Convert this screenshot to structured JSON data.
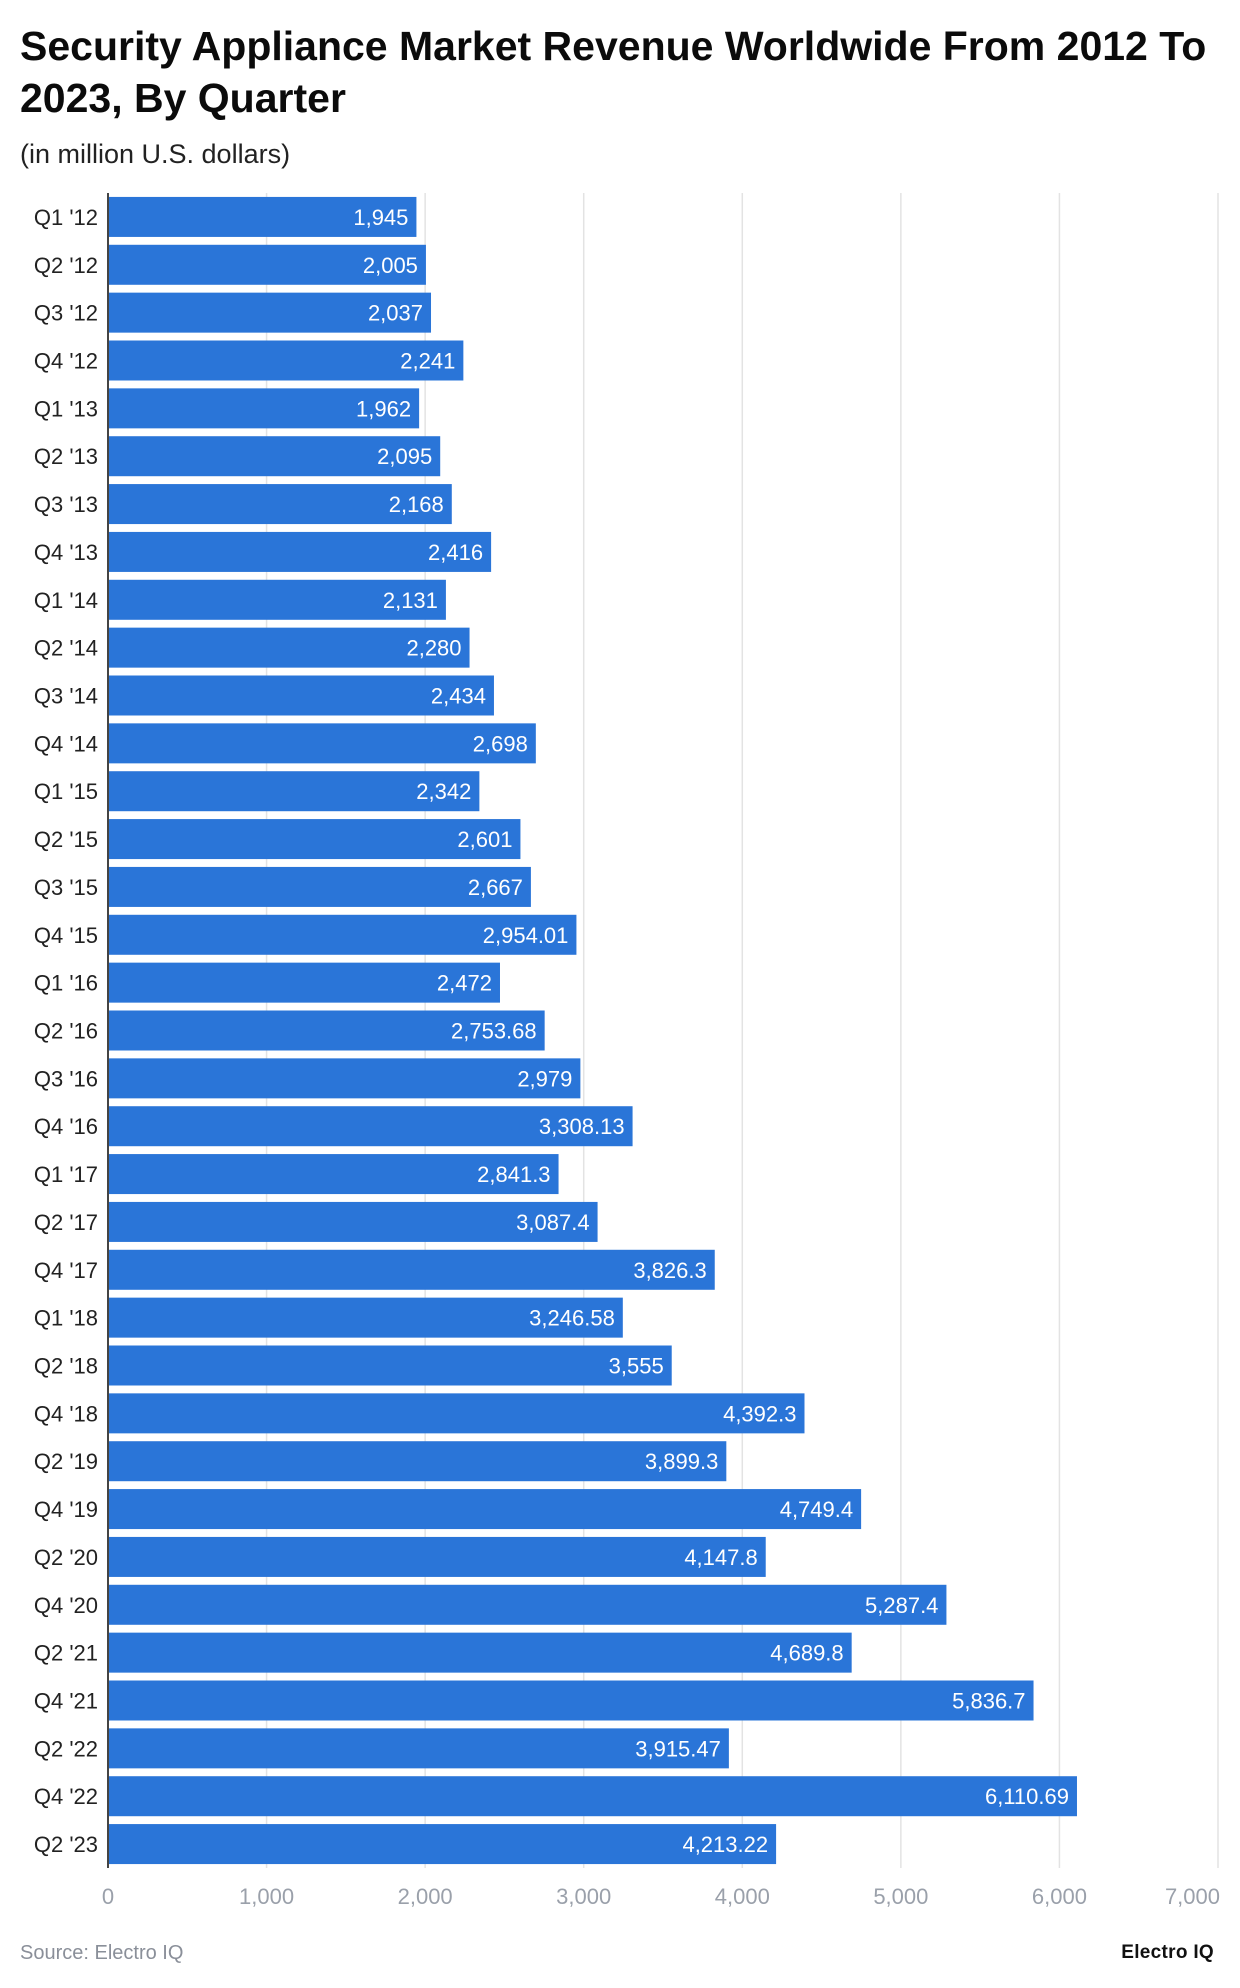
{
  "header": {
    "title": "Security Appliance Market Revenue Worldwide From 2012 To 2023, By Quarter",
    "subtitle": "(in million U.S. dollars)"
  },
  "footer": {
    "source": "Source: Electro IQ",
    "brand": "Electro IQ"
  },
  "colors": {
    "bar": "#2a75d8",
    "grid": "#e3e3e3",
    "axis": "#444444"
  },
  "chart_data": {
    "type": "bar",
    "orientation": "horizontal",
    "categories": [
      "Q1 '12",
      "Q2 '12",
      "Q3 '12",
      "Q4 '12",
      "Q1 '13",
      "Q2 '13",
      "Q3 '13",
      "Q4 '13",
      "Q1 '14",
      "Q2 '14",
      "Q3 '14",
      "Q4 '14",
      "Q1 '15",
      "Q2 '15",
      "Q3 '15",
      "Q4 '15",
      "Q1 '16",
      "Q2 '16",
      "Q3 '16",
      "Q4 '16",
      "Q1 '17",
      "Q2 '17",
      "Q4 '17",
      "Q1 '18",
      "Q2 '18",
      "Q4 '18",
      "Q2 '19",
      "Q4 '19",
      "Q2 '20",
      "Q4 '20",
      "Q2 '21",
      "Q4 '21",
      "Q2 '22",
      "Q4 '22",
      "Q2 '23"
    ],
    "values": [
      1945,
      2005,
      2037,
      2241,
      1962,
      2095,
      2168,
      2416,
      2131,
      2280,
      2434,
      2698,
      2342,
      2601,
      2667,
      2954.01,
      2472,
      2753.68,
      2979,
      3308.13,
      2841.3,
      3087.4,
      3826.3,
      3246.58,
      3555,
      4392.3,
      3899.3,
      4749.4,
      4147.8,
      5287.4,
      4689.8,
      5836.7,
      3915.47,
      6110.69,
      4213.22
    ],
    "value_labels": [
      "1,945",
      "2,005",
      "2,037",
      "2,241",
      "1,962",
      "2,095",
      "2,168",
      "2,416",
      "2,131",
      "2,280",
      "2,434",
      "2,698",
      "2,342",
      "2,601",
      "2,667",
      "2,954.01",
      "2,472",
      "2,753.68",
      "2,979",
      "3,308.13",
      "2,841.3",
      "3,087.4",
      "3,826.3",
      "3,246.58",
      "3,555",
      "4,392.3",
      "3,899.3",
      "4,749.4",
      "4,147.8",
      "5,287.4",
      "4,689.8",
      "5,836.7",
      "3,915.47",
      "6,110.69",
      "4,213.22"
    ],
    "xlim": [
      0,
      7000
    ],
    "ticks": [
      0,
      1000,
      2000,
      3000,
      4000,
      5000,
      6000,
      7000
    ],
    "tick_labels": [
      "0",
      "1,000",
      "2,000",
      "3,000",
      "4,000",
      "5,000",
      "6,000",
      "7,000"
    ],
    "xlabel": "",
    "ylabel": "",
    "grid": true,
    "legend": "none"
  }
}
